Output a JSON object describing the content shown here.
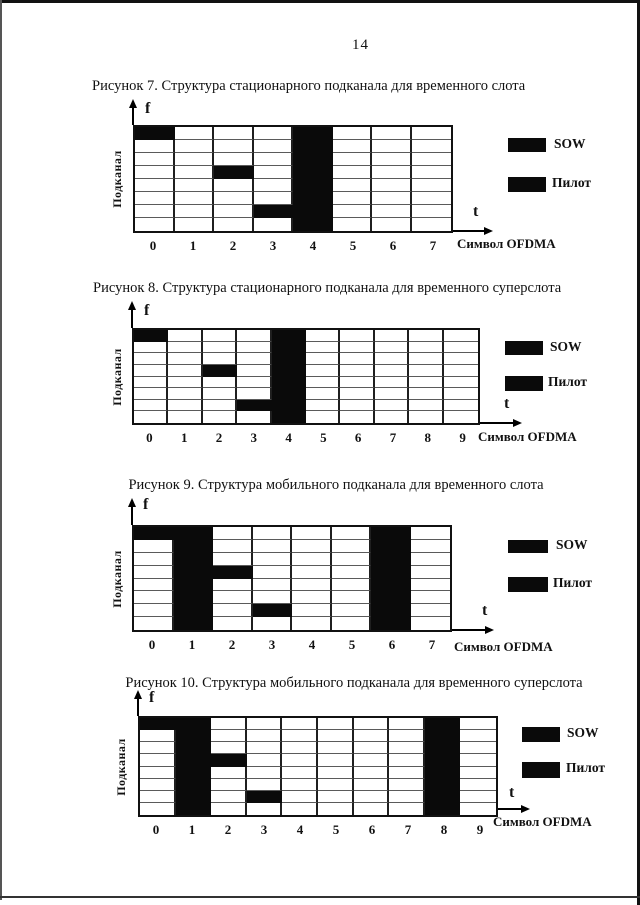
{
  "page": {
    "number": "14"
  },
  "colors": {
    "fill": "#0a0a0a",
    "grid_line": "#5a5a5a",
    "border": "#111111"
  },
  "figures": [
    {
      "caption": "Рисунок 7. Структура стационарного подканала для временного слота",
      "axis": {
        "f": "f",
        "t": "t",
        "x_title": "Символ OFDMA",
        "y_title": "Подканал"
      },
      "legend": {
        "sow": "SOW",
        "pilot": "Пилот"
      },
      "grid": {
        "cols": 8,
        "rows": 8,
        "x_ticks": [
          "0",
          "1",
          "2",
          "3",
          "4",
          "5",
          "6",
          "7"
        ],
        "full_black_columns": [
          4
        ],
        "black_cells": [
          [
            0,
            0
          ],
          [
            2,
            3
          ],
          [
            3,
            6
          ]
        ]
      }
    },
    {
      "caption": "Рисунок 8. Структура стационарного подканала для временного суперслота",
      "axis": {
        "f": "f",
        "t": "t",
        "x_title": "Символ OFDMA",
        "y_title": "Подканал"
      },
      "legend": {
        "sow": "SOW",
        "pilot": "Пилот"
      },
      "grid": {
        "cols": 10,
        "rows": 8,
        "x_ticks": [
          "0",
          "1",
          "2",
          "3",
          "4",
          "5",
          "6",
          "7",
          "8",
          "9"
        ],
        "full_black_columns": [
          4
        ],
        "black_cells": [
          [
            0,
            0
          ],
          [
            2,
            3
          ],
          [
            3,
            6
          ]
        ]
      }
    },
    {
      "caption": "Рисунок 9. Структура мобильного подканала для временного слота",
      "axis": {
        "f": "f",
        "t": "t",
        "x_title": "Символ OFDMA",
        "y_title": "Подканал"
      },
      "legend": {
        "sow": "SOW",
        "pilot": "Пилот"
      },
      "grid": {
        "cols": 8,
        "rows": 8,
        "x_ticks": [
          "0",
          "1",
          "2",
          "3",
          "4",
          "5",
          "6",
          "7"
        ],
        "full_black_columns": [
          1,
          6
        ],
        "black_cells": [
          [
            0,
            0
          ],
          [
            2,
            3
          ],
          [
            3,
            6
          ]
        ]
      }
    },
    {
      "caption": "Рисунок 10. Структура мобильного подканала для временного суперслота",
      "axis": {
        "f": "f",
        "t": "t",
        "x_title": "Символ OFDMA",
        "y_title": "Подканал"
      },
      "legend": {
        "sow": "SOW",
        "pilot": "Пилот"
      },
      "grid": {
        "cols": 10,
        "rows": 8,
        "x_ticks": [
          "0",
          "1",
          "2",
          "3",
          "4",
          "5",
          "6",
          "7",
          "8",
          "9"
        ],
        "full_black_columns": [
          1,
          8
        ],
        "black_cells": [
          [
            0,
            0
          ],
          [
            2,
            3
          ],
          [
            3,
            6
          ]
        ]
      }
    }
  ]
}
